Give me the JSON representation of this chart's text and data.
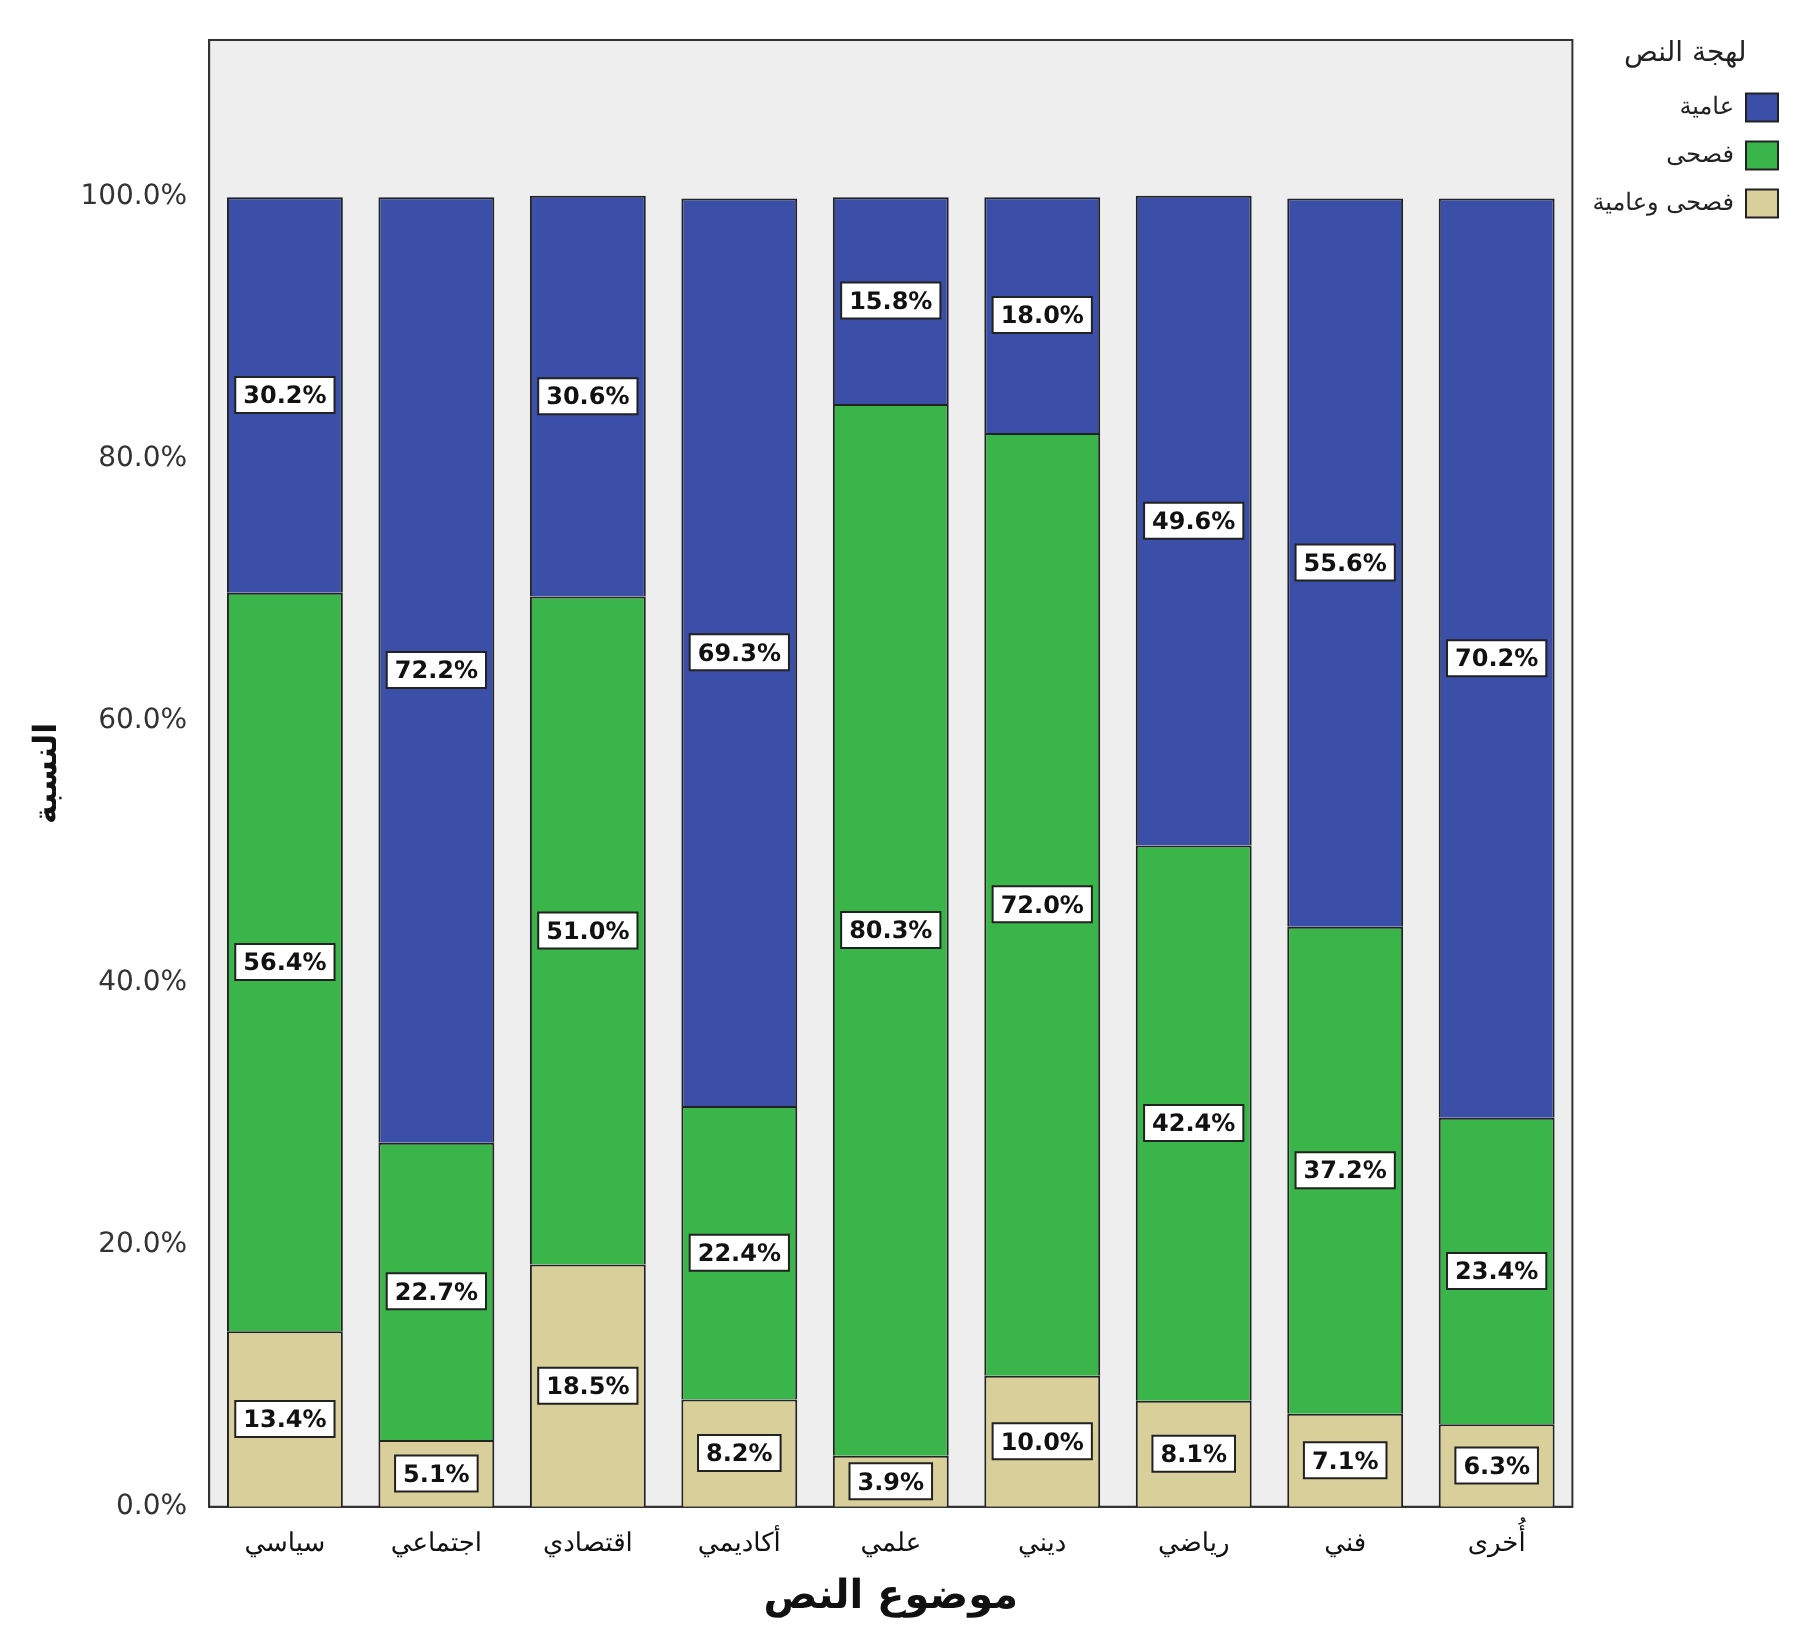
{
  "chart_data": {
    "type": "bar",
    "stacked": true,
    "xlabel": "موضوع النص",
    "ylabel": "النسبة",
    "legend_title": "لهجة النص",
    "legend": "top right",
    "grid": false,
    "categories": [
      "سياسي",
      "اجتماعي",
      "اقتصادي",
      "أكاديمي",
      "علمي",
      "ديني",
      "رياضي",
      "فني",
      "أُخرى"
    ],
    "series": [
      {
        "name": "فصحى وعامية",
        "color": "#d8cf9a",
        "values": [
          13.4,
          5.1,
          18.5,
          8.2,
          3.9,
          10.0,
          8.1,
          7.1,
          6.3
        ],
        "value_labels": [
          "13.4%",
          "5.1%",
          "18.5%",
          "8.2%",
          "3.9%",
          "10.0%",
          "8.1%",
          "7.1%",
          "6.3%"
        ]
      },
      {
        "name": "فصحى",
        "color": "#3ab54a",
        "values": [
          56.4,
          22.7,
          51.0,
          22.4,
          80.3,
          72.0,
          42.4,
          37.2,
          23.4
        ],
        "value_labels": [
          "56.4%",
          "22.7%",
          "51.0%",
          "22.4%",
          "80.3%",
          "72.0%",
          "42.4%",
          "37.2%",
          "23.4%"
        ]
      },
      {
        "name": "عامية",
        "color": "#3b4fa8",
        "values": [
          30.2,
          72.2,
          30.6,
          69.3,
          15.8,
          18.0,
          49.6,
          55.6,
          70.2
        ],
        "value_labels": [
          "30.2%",
          "72.2%",
          "30.6%",
          "69.3%",
          "15.8%",
          "18.0%",
          "49.6%",
          "55.6%",
          "70.2%"
        ]
      }
    ],
    "ylim": [
      0,
      112
    ],
    "yticks": [
      {
        "value": 0,
        "label": "0.0%"
      },
      {
        "value": 20,
        "label": "20.0%"
      },
      {
        "value": 40,
        "label": "40.0%"
      },
      {
        "value": 60,
        "label": "60.0%"
      },
      {
        "value": 80,
        "label": "80.0%"
      },
      {
        "value": 100,
        "label": "100.0%"
      }
    ]
  }
}
